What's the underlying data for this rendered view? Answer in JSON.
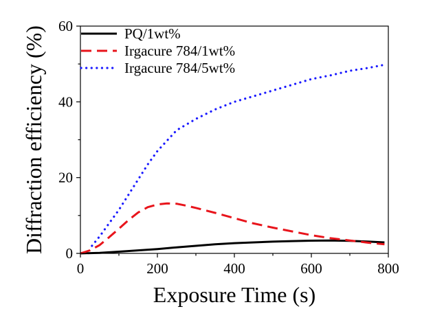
{
  "chart_data": {
    "type": "line",
    "xlabel": "Exposure Time (s)",
    "ylabel": "Diffraction efficiency (%)",
    "xlim": [
      0,
      800
    ],
    "ylim": [
      0,
      60
    ],
    "x_ticks": [
      0,
      200,
      400,
      600,
      800
    ],
    "y_ticks": [
      0,
      20,
      40,
      60
    ],
    "x_tick_labels": [
      "0",
      "200",
      "400",
      "600",
      "800"
    ],
    "y_tick_labels": [
      "0",
      "20",
      "40",
      "60"
    ],
    "grid": false,
    "legend_position": "top-left",
    "series": [
      {
        "name": "PQ/1wt%",
        "color": "#000000",
        "line_style": "solid",
        "x": [
          0,
          50,
          100,
          150,
          200,
          250,
          300,
          350,
          400,
          450,
          500,
          550,
          600,
          650,
          700,
          750,
          790
        ],
        "y": [
          0,
          0.15,
          0.45,
          0.8,
          1.15,
          1.6,
          2.0,
          2.4,
          2.7,
          2.9,
          3.1,
          3.25,
          3.35,
          3.4,
          3.3,
          3.1,
          2.9
        ]
      },
      {
        "name": "Irgacure 784/1wt%",
        "color": "#e8141b",
        "line_style": "dashed",
        "x": [
          0,
          25,
          50,
          75,
          100,
          125,
          150,
          175,
          200,
          225,
          250,
          275,
          300,
          350,
          400,
          450,
          500,
          550,
          600,
          650,
          700,
          750,
          790
        ],
        "y": [
          0,
          0.8,
          2.2,
          4.3,
          6.5,
          8.8,
          10.8,
          12.2,
          12.9,
          13.2,
          13.1,
          12.6,
          12.0,
          10.7,
          9.3,
          7.9,
          6.8,
          5.8,
          4.8,
          4.0,
          3.4,
          2.8,
          2.4
        ]
      },
      {
        "name": "Irgacure 784/5wt%",
        "color": "#1a1aff",
        "line_style": "dotted",
        "x": [
          30,
          50,
          75,
          100,
          125,
          150,
          175,
          200,
          250,
          300,
          350,
          400,
          450,
          500,
          550,
          600,
          650,
          700,
          750,
          790
        ],
        "y": [
          2.0,
          4.5,
          8.0,
          11.5,
          15.5,
          19.5,
          23.5,
          27.0,
          32.5,
          35.5,
          38.0,
          40.0,
          41.5,
          43.0,
          44.5,
          46.0,
          47.0,
          48.2,
          49.0,
          49.8
        ]
      }
    ]
  }
}
